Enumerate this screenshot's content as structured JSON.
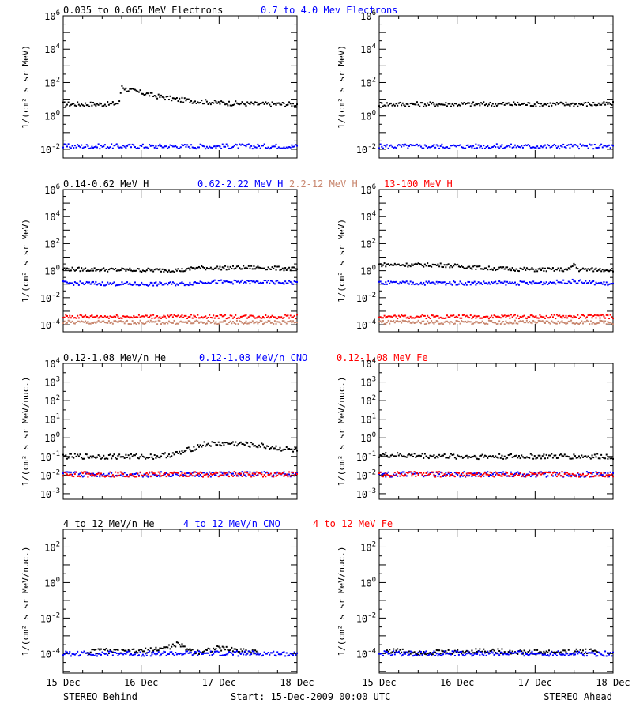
{
  "colors": {
    "black": "#000000",
    "blue": "#0000ff",
    "red": "#ff0000",
    "tan": "#c8866e"
  },
  "footer": {
    "left": "STEREO Behind",
    "center": "Start: 15-Dec-2009 00:00 UTC",
    "right": "STEREO Ahead"
  },
  "chart_data": [
    {
      "type": "scatter",
      "row": 0,
      "col": 0,
      "yscale": "log",
      "ylim": [
        0.003,
        1000000
      ],
      "ylabel": "1/(cm² s sr MeV)",
      "ticks": [
        {
          "exp": -2,
          "text": "10",
          "sup": "-2"
        },
        {
          "exp": 0,
          "text": "10",
          "sup": "0"
        },
        {
          "exp": 2,
          "text": "10",
          "sup": "2"
        },
        {
          "exp": 4,
          "text": "10",
          "sup": "4"
        },
        {
          "exp": 6,
          "text": "10",
          "sup": "6"
        }
      ],
      "x_categories": [
        "15-Dec",
        "16-Dec",
        "17-Dec",
        "18-Dec"
      ],
      "series": [
        {
          "name": "0.035 to 0.065 MeV Electrons",
          "color": "#000000",
          "x": [
            0,
            0.6,
            0.72,
            0.75,
            0.8,
            1.0,
            1.2,
            1.5,
            2.0,
            2.5,
            3.0
          ],
          "y": [
            5,
            5,
            6,
            70,
            40,
            25,
            15,
            9,
            6,
            5,
            5
          ]
        },
        {
          "name": "0.7 to 4.0 Mev Electrons",
          "color": "#0000ff",
          "x": [
            0,
            1.0,
            2.0,
            3.0
          ],
          "y": [
            0.015,
            0.015,
            0.015,
            0.015
          ]
        }
      ]
    },
    {
      "type": "scatter",
      "row": 0,
      "col": 1,
      "yscale": "log",
      "ylim": [
        0.003,
        1000000
      ],
      "ylabel": "1/(cm² s sr MeV)",
      "ticks": [
        {
          "exp": -2,
          "text": "10",
          "sup": "-2"
        },
        {
          "exp": 0,
          "text": "10",
          "sup": "0"
        },
        {
          "exp": 2,
          "text": "10",
          "sup": "2"
        },
        {
          "exp": 4,
          "text": "10",
          "sup": "4"
        },
        {
          "exp": 6,
          "text": "10",
          "sup": "6"
        }
      ],
      "x_categories": [
        "15-Dec",
        "16-Dec",
        "17-Dec",
        "18-Dec"
      ],
      "series": [
        {
          "name": "",
          "color": "#000000",
          "x": [
            0,
            1.0,
            2.0,
            3.0
          ],
          "y": [
            5,
            5,
            5,
            5
          ]
        },
        {
          "name": "",
          "color": "#0000ff",
          "x": [
            0,
            1.0,
            2.0,
            3.0
          ],
          "y": [
            0.015,
            0.015,
            0.015,
            0.015
          ]
        }
      ]
    },
    {
      "type": "scatter",
      "row": 1,
      "col": 0,
      "yscale": "log",
      "ylim": [
        3e-05,
        1000000
      ],
      "ylabel": "1/(cm² s sr MeV)",
      "ticks": [
        {
          "exp": -4,
          "text": "10",
          "sup": "-4"
        },
        {
          "exp": -2,
          "text": "10",
          "sup": "-2"
        },
        {
          "exp": 0,
          "text": "10",
          "sup": "0"
        },
        {
          "exp": 2,
          "text": "10",
          "sup": "2"
        },
        {
          "exp": 4,
          "text": "10",
          "sup": "4"
        },
        {
          "exp": 6,
          "text": "10",
          "sup": "6"
        }
      ],
      "x_categories": [
        "15-Dec",
        "16-Dec",
        "17-Dec",
        "18-Dec"
      ],
      "series": [
        {
          "name": "0.14-0.62 MeV H",
          "color": "#000000",
          "x": [
            0,
            1.0,
            1.6,
            1.65,
            2.0,
            2.5,
            3.0
          ],
          "y": [
            1.3,
            1.1,
            1.1,
            1.6,
            1.6,
            1.7,
            1.3
          ]
        },
        {
          "name": "0.62-2.22 MeV H",
          "color": "#0000ff",
          "x": [
            0,
            1.0,
            1.6,
            1.8,
            2.5,
            3.0
          ],
          "y": [
            0.12,
            0.1,
            0.11,
            0.15,
            0.14,
            0.13
          ]
        },
        {
          "name": "2.2-12 MeV H",
          "color": "#c8866e",
          "x": [
            0,
            1.0,
            2.0,
            3.0
          ],
          "y": [
            0.00015,
            0.00015,
            0.00015,
            0.00015
          ]
        },
        {
          "name": "13-100 MeV H",
          "color": "#ff0000",
          "x": [
            0,
            1.0,
            2.0,
            3.0
          ],
          "y": [
            0.0004,
            0.0004,
            0.0004,
            0.0004
          ]
        }
      ]
    },
    {
      "type": "scatter",
      "row": 1,
      "col": 1,
      "yscale": "log",
      "ylim": [
        3e-05,
        1000000
      ],
      "ylabel": "1/(cm² s sr MeV)",
      "ticks": [
        {
          "exp": -4,
          "text": "10",
          "sup": "-4"
        },
        {
          "exp": -2,
          "text": "10",
          "sup": "-2"
        },
        {
          "exp": 0,
          "text": "10",
          "sup": "0"
        },
        {
          "exp": 2,
          "text": "10",
          "sup": "2"
        },
        {
          "exp": 4,
          "text": "10",
          "sup": "4"
        },
        {
          "exp": 6,
          "text": "10",
          "sup": "6"
        }
      ],
      "x_categories": [
        "15-Dec",
        "16-Dec",
        "17-Dec",
        "18-Dec"
      ],
      "series": [
        {
          "name": "",
          "color": "#000000",
          "x": [
            0,
            0.8,
            1.4,
            2.0,
            2.45,
            2.5,
            2.55,
            3.0
          ],
          "y": [
            2.8,
            2.6,
            1.5,
            1.2,
            1.2,
            3.5,
            1.2,
            1.2
          ]
        },
        {
          "name": "",
          "color": "#0000ff",
          "x": [
            0,
            1.0,
            2.0,
            2.5,
            3.0
          ],
          "y": [
            0.12,
            0.12,
            0.12,
            0.16,
            0.1
          ]
        },
        {
          "name": "",
          "color": "#c8866e",
          "x": [
            0,
            1.0,
            2.0,
            3.0
          ],
          "y": [
            0.00015,
            0.00015,
            0.00015,
            0.00015
          ]
        },
        {
          "name": "",
          "color": "#ff0000",
          "x": [
            0,
            1.0,
            2.0,
            3.0
          ],
          "y": [
            0.0004,
            0.0004,
            0.0004,
            0.0004
          ]
        }
      ]
    },
    {
      "type": "scatter",
      "row": 2,
      "col": 0,
      "yscale": "log",
      "ylim": [
        0.0005,
        10000
      ],
      "ylabel": "1/(cm² s sr MeV/nuc.)",
      "ticks": [
        {
          "exp": -3,
          "text": "10",
          "sup": "-3"
        },
        {
          "exp": -2,
          "text": "10",
          "sup": "-2"
        },
        {
          "exp": -1,
          "text": "10",
          "sup": "-1"
        },
        {
          "exp": 0,
          "text": "10",
          "sup": "0"
        },
        {
          "exp": 1,
          "text": "10",
          "sup": "1"
        },
        {
          "exp": 2,
          "text": "10",
          "sup": "2"
        },
        {
          "exp": 3,
          "text": "10",
          "sup": "3"
        },
        {
          "exp": 4,
          "text": "10",
          "sup": "4"
        }
      ],
      "x_categories": [
        "15-Dec",
        "16-Dec",
        "17-Dec",
        "18-Dec"
      ],
      "series": [
        {
          "name": "0.12-1.08 MeV/n He",
          "color": "#000000",
          "x": [
            0,
            0.6,
            1.2,
            1.5,
            1.8,
            2.2,
            2.6,
            3.0
          ],
          "y": [
            0.1,
            0.1,
            0.1,
            0.15,
            0.45,
            0.5,
            0.35,
            0.2
          ]
        },
        {
          "name": "0.12-1.08 MeV/n CNO",
          "color": "#0000ff",
          "x": [
            0,
            1.0,
            2.0,
            3.0
          ],
          "y": [
            0.011,
            0.011,
            0.011,
            0.011
          ]
        },
        {
          "name": "0.12-1.08 MeV Fe",
          "color": "#ff0000",
          "x": [
            0,
            1.0,
            2.0,
            3.0
          ],
          "y": [
            0.011,
            0.011,
            0.011,
            0.011
          ]
        }
      ]
    },
    {
      "type": "scatter",
      "row": 2,
      "col": 1,
      "yscale": "log",
      "ylim": [
        0.0005,
        10000
      ],
      "ylabel": "1/(cm² s sr MeV/nuc.)",
      "ticks": [
        {
          "exp": -3,
          "text": "10",
          "sup": "-3"
        },
        {
          "exp": -2,
          "text": "10",
          "sup": "-2"
        },
        {
          "exp": -1,
          "text": "10",
          "sup": "-1"
        },
        {
          "exp": 0,
          "text": "10",
          "sup": "0"
        },
        {
          "exp": 1,
          "text": "10",
          "sup": "1"
        },
        {
          "exp": 2,
          "text": "10",
          "sup": "2"
        },
        {
          "exp": 3,
          "text": "10",
          "sup": "3"
        },
        {
          "exp": 4,
          "text": "10",
          "sup": "4"
        }
      ],
      "x_categories": [
        "15-Dec",
        "16-Dec",
        "17-Dec",
        "18-Dec"
      ],
      "series": [
        {
          "name": "",
          "color": "#000000",
          "x": [
            0,
            1.0,
            2.0,
            3.0
          ],
          "y": [
            0.12,
            0.1,
            0.1,
            0.1
          ]
        },
        {
          "name": "",
          "color": "#0000ff",
          "x": [
            0,
            1.0,
            2.0,
            3.0
          ],
          "y": [
            0.011,
            0.011,
            0.011,
            0.011
          ]
        },
        {
          "name": "",
          "color": "#ff0000",
          "x": [
            0,
            1.0,
            2.0,
            3.0
          ],
          "y": [
            0.011,
            0.011,
            0.011,
            0.011
          ]
        }
      ]
    },
    {
      "type": "scatter",
      "row": 3,
      "col": 0,
      "yscale": "log",
      "ylim": [
        8e-06,
        1000
      ],
      "ylabel": "1/(cm² s sr MeV/nuc.)",
      "ticks": [
        {
          "exp": -4,
          "text": "10",
          "sup": "-4"
        },
        {
          "exp": -2,
          "text": "10",
          "sup": "-2"
        },
        {
          "exp": 0,
          "text": "10",
          "sup": "0"
        },
        {
          "exp": 2,
          "text": "10",
          "sup": "2"
        }
      ],
      "x_categories": [
        "15-Dec",
        "16-Dec",
        "17-Dec",
        "18-Dec"
      ],
      "series": [
        {
          "name": "4 to 12 MeV/n He",
          "color": "#000000",
          "x": [
            0.3,
            0.5,
            0.8,
            1.1,
            1.4,
            1.45,
            1.7,
            2.0,
            2.5
          ],
          "y": [
            0.00012,
            0.00015,
            0.00012,
            0.00015,
            0.00025,
            0.00035,
            0.00012,
            0.0002,
            0.00012
          ]
        },
        {
          "name": "4 to 12 MeV/n CNO",
          "color": "#0000ff",
          "x": [
            0,
            1.0,
            2.0,
            3.0
          ],
          "y": [
            0.0001,
            0.0001,
            0.0001,
            0.0001
          ]
        },
        {
          "name": "4 to 12 MeV Fe",
          "color": "#ff0000",
          "x": [],
          "y": []
        }
      ]
    },
    {
      "type": "scatter",
      "row": 3,
      "col": 1,
      "yscale": "log",
      "ylim": [
        8e-06,
        1000
      ],
      "ylabel": "1/(cm² s sr MeV/nuc.)",
      "ticks": [
        {
          "exp": -4,
          "text": "10",
          "sup": "-4"
        },
        {
          "exp": -2,
          "text": "10",
          "sup": "-2"
        },
        {
          "exp": 0,
          "text": "10",
          "sup": "0"
        },
        {
          "exp": 2,
          "text": "10",
          "sup": "2"
        }
      ],
      "x_categories": [
        "15-Dec",
        "16-Dec",
        "17-Dec",
        "18-Dec"
      ],
      "series": [
        {
          "name": "",
          "color": "#000000",
          "x": [
            0.1,
            0.5,
            1.0,
            1.3,
            1.8,
            2.4,
            2.8
          ],
          "y": [
            0.00015,
            0.00012,
            0.00012,
            0.00015,
            0.00012,
            0.00012,
            0.00015
          ]
        },
        {
          "name": "",
          "color": "#0000ff",
          "x": [
            0,
            1.0,
            2.0,
            3.0
          ],
          "y": [
            0.0001,
            0.0001,
            0.0001,
            0.0001
          ]
        },
        {
          "name": "",
          "color": "#ff0000",
          "x": [],
          "y": []
        }
      ]
    }
  ]
}
